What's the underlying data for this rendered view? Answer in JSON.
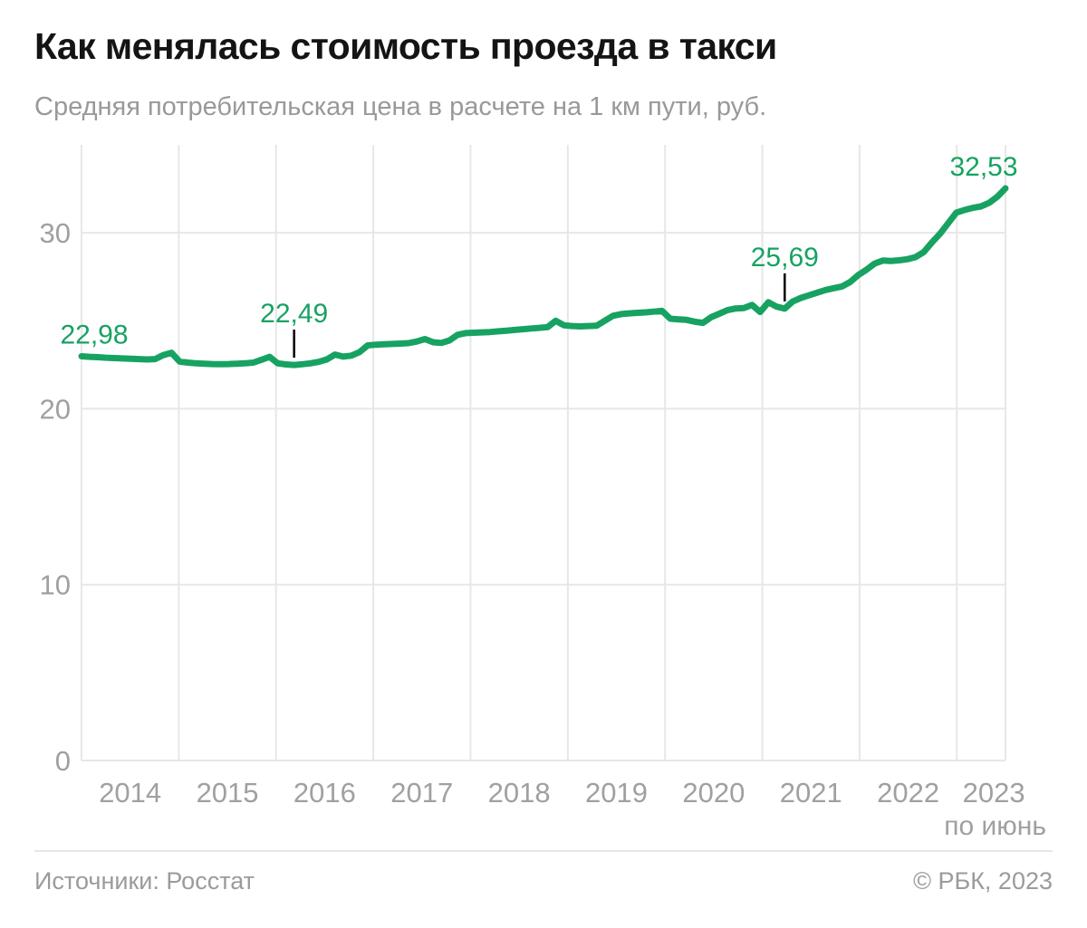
{
  "header": {
    "title": "Как менялась стоимость проезда в такси",
    "subtitle": "Средняя потребительская цена в расчете на 1 км пути, руб."
  },
  "footer": {
    "source": "Источники: Росстат",
    "copyright": "© РБК, 2023"
  },
  "colors": {
    "line": "#17a261",
    "annotation_text": "#17a261",
    "annotation_tick": "#000000",
    "grid": "#e7e7e7",
    "axis_label": "#a0a0a0",
    "title": "#141414",
    "subtitle": "#98999b",
    "footer_text": "#9b9b9b",
    "background": "#ffffff"
  },
  "chart_data": {
    "type": "line",
    "title": "Как менялась стоимость проезда в такси",
    "subtitle_unit": "руб. за 1 км",
    "x_tick_labels": [
      "2014",
      "2015",
      "2016",
      "2017",
      "2018",
      "2019",
      "2020",
      "2021",
      "2022",
      "2023"
    ],
    "x_note": "по июнь",
    "x_start": "2014-01",
    "x_end": "2023-06",
    "points_per_year": 12,
    "y_ticks": [
      0,
      10,
      20,
      30
    ],
    "ylim": [
      0,
      35
    ],
    "grid": true,
    "legend": "none",
    "monthly_values": [
      22.98,
      22.95,
      22.93,
      22.9,
      22.88,
      22.86,
      22.84,
      22.82,
      22.8,
      22.82,
      23.05,
      23.18,
      22.68,
      22.62,
      22.58,
      22.56,
      22.54,
      22.53,
      22.54,
      22.56,
      22.58,
      22.62,
      22.78,
      22.95,
      22.58,
      22.52,
      22.49,
      22.53,
      22.58,
      22.66,
      22.8,
      23.08,
      22.96,
      23.02,
      23.22,
      23.6,
      23.64,
      23.66,
      23.68,
      23.7,
      23.73,
      23.82,
      23.96,
      23.78,
      23.74,
      23.88,
      24.2,
      24.3,
      24.32,
      24.34,
      24.36,
      24.4,
      24.44,
      24.48,
      24.52,
      24.56,
      24.6,
      24.64,
      25.0,
      24.74,
      24.7,
      24.68,
      24.7,
      24.72,
      25.0,
      25.28,
      25.38,
      25.42,
      25.45,
      25.48,
      25.52,
      25.56,
      25.12,
      25.08,
      25.05,
      24.95,
      24.88,
      25.2,
      25.4,
      25.6,
      25.7,
      25.72,
      25.9,
      25.5,
      26.05,
      25.8,
      25.69,
      26.1,
      26.3,
      26.45,
      26.6,
      26.75,
      26.85,
      26.95,
      27.2,
      27.6,
      27.9,
      28.25,
      28.42,
      28.4,
      28.44,
      28.5,
      28.62,
      28.9,
      29.45,
      29.95,
      30.55,
      31.15,
      31.3,
      31.42,
      31.5,
      31.7,
      32.05,
      32.53
    ],
    "annotations": [
      {
        "label": "22,98",
        "index": 0,
        "value": 22.98,
        "tick": false
      },
      {
        "label": "22,49",
        "index": 26,
        "value": 22.49,
        "tick": true
      },
      {
        "label": "25,69",
        "index": 86,
        "value": 25.69,
        "tick": true
      },
      {
        "label": "32,53",
        "index": 113,
        "value": 32.53,
        "tick": false
      }
    ]
  }
}
